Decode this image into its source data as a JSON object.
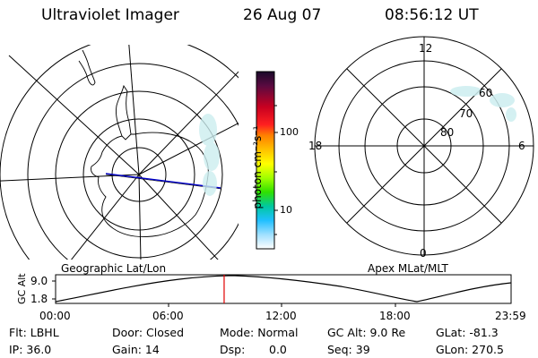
{
  "header": {
    "title": "Ultraviolet Imager",
    "date": "26 Aug 07",
    "time": "08:56:12 UT"
  },
  "left_map": {
    "label": "Geographic Lat/Lon"
  },
  "right_map": {
    "label": "Apex MLat/MLT",
    "mlt_labels": {
      "top": "12",
      "left": "18",
      "right": "6",
      "bottom": "0"
    },
    "lat_labels": [
      "60",
      "70",
      "80"
    ]
  },
  "colorbar": {
    "unit_label": "photon cm⁻²s⁻¹",
    "ticks": [
      "100",
      "10"
    ],
    "colors": [
      "#2a0d3a",
      "#7a0020",
      "#d40016",
      "#ff2a2a",
      "#ff7a00",
      "#ffc000",
      "#fff000",
      "#b4ff00",
      "#50e000",
      "#00d090",
      "#30c8ff",
      "#a0e8ff",
      "#ffffff"
    ]
  },
  "timeline": {
    "y_axis_label": "GC Alt",
    "y_ticks": [
      "9.0",
      "1.8"
    ],
    "x_ticks": [
      "00:00",
      "06:00",
      "12:00",
      "18:00",
      "23:59"
    ],
    "current_time_fraction": 0.37,
    "marker_color": "#e00000"
  },
  "status": {
    "filter": "Flt: LBHL",
    "door": "Door: Closed",
    "mode": "Mode: Normal",
    "gc_alt": "GC Alt: 9.0 Re",
    "glat": "GLat: -81.3",
    "ip": "IP: 36.0",
    "gain": "Gain: 14",
    "dsp_label": "Dsp:",
    "dsp_value": "0.0",
    "seq": "Seq: 39",
    "glon": "GLon: 270.5"
  }
}
